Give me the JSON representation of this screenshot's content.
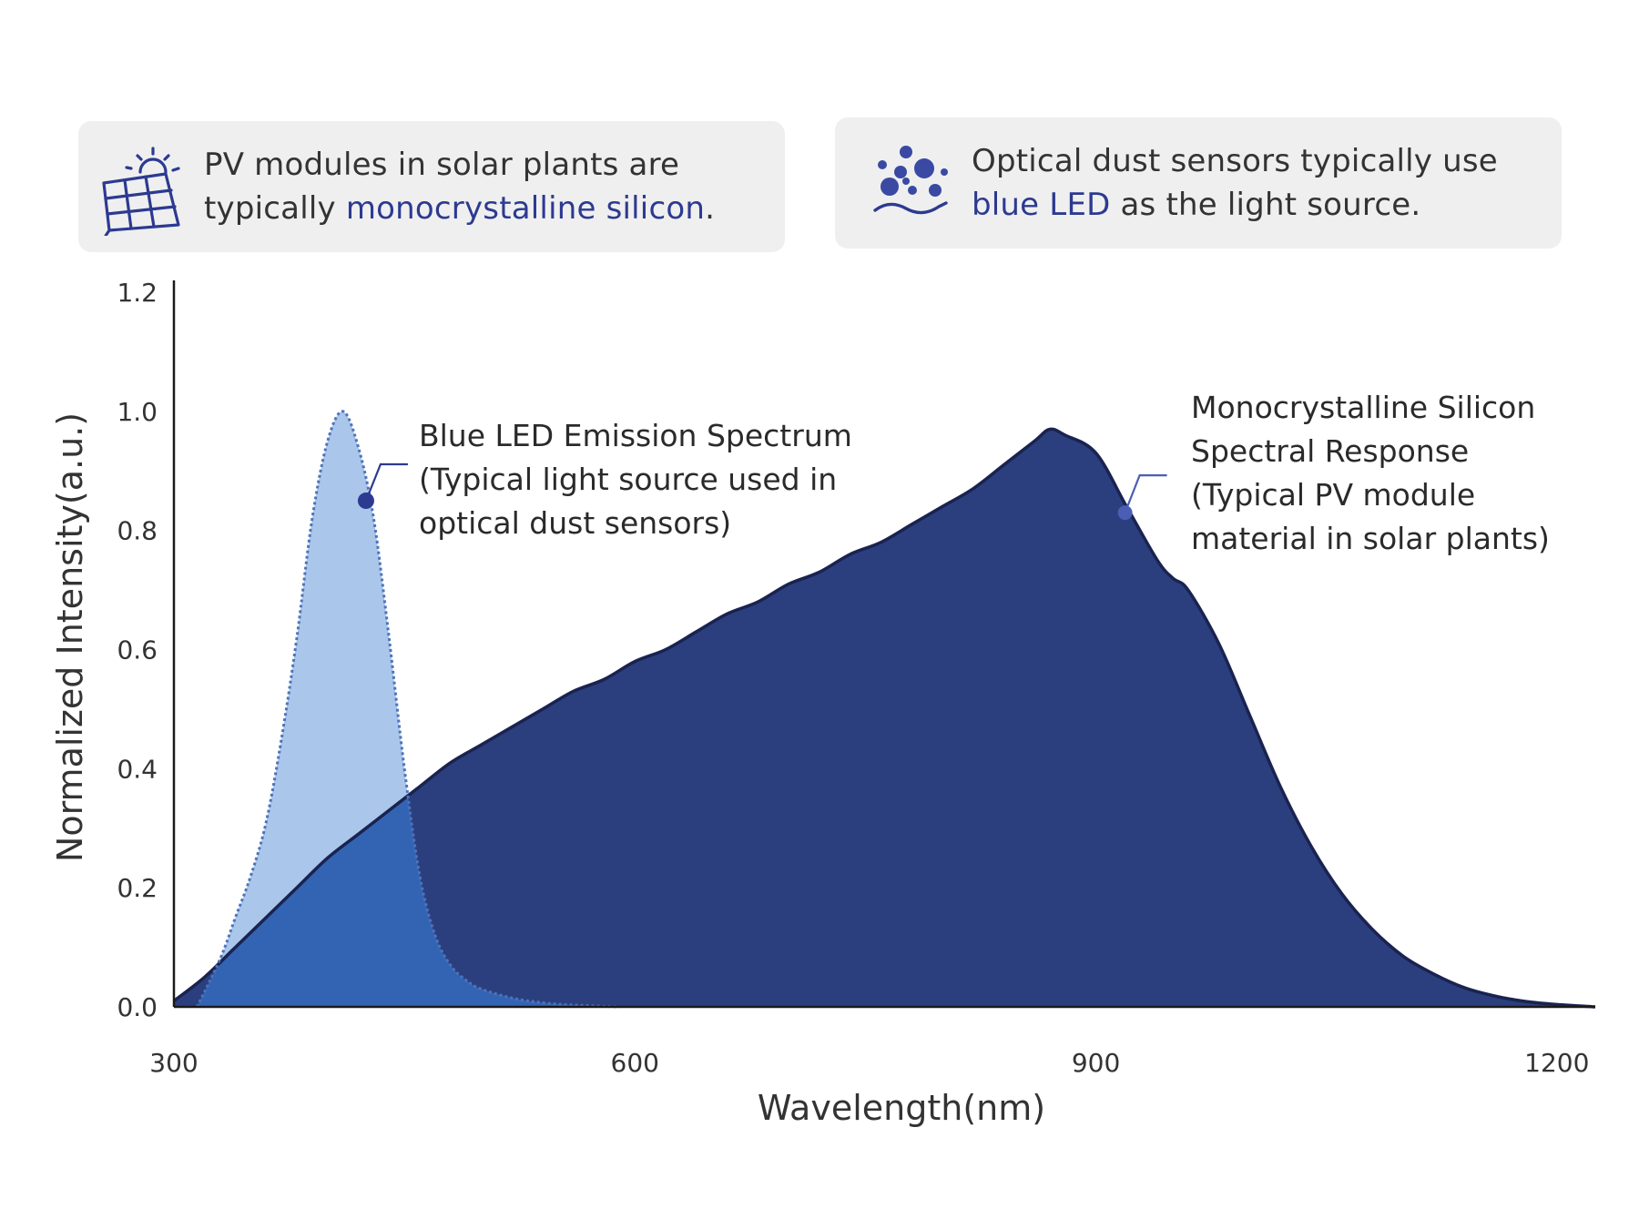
{
  "cards": {
    "pv": {
      "icon": "solar-panel-icon",
      "text_before": "PV modules in solar plants are typically ",
      "highlight": "monocrystalline silicon",
      "text_after": "."
    },
    "dust": {
      "icon": "dust-particles-icon",
      "text_before": "Optical dust sensors typically use ",
      "highlight": "blue LED",
      "text_after": " as the light source."
    }
  },
  "colors": {
    "highlight": "#2c3a91",
    "silicon_fill": "#2b3f7e",
    "silicon_stroke": "#1a2350",
    "led_fill": "#aac6ea",
    "led_stroke": "#4d73b9",
    "overlap_fill": "#3364b4",
    "card_bg": "#efefef"
  },
  "chart_data": {
    "type": "area",
    "xlabel": "Wavelength(nm)",
    "ylabel": "Normalized Intensity(a.u.)",
    "xlim": [
      300,
      1225
    ],
    "ylim": [
      0.0,
      1.22
    ],
    "x_ticks": [
      300,
      600,
      900,
      1200
    ],
    "y_ticks": [
      0.0,
      0.2,
      0.4,
      0.6,
      0.8,
      1.0,
      1.2
    ],
    "y_tick_labels": [
      "0.0",
      "0.2",
      "0.4",
      "0.6",
      "0.8",
      "1.0",
      "1.2"
    ],
    "grid": false,
    "series": [
      {
        "key": "silicon",
        "x": [
          300,
          320,
          340,
          360,
          380,
          400,
          420,
          440,
          460,
          480,
          500,
          520,
          540,
          560,
          580,
          600,
          620,
          640,
          660,
          680,
          700,
          720,
          740,
          760,
          780,
          800,
          820,
          840,
          860,
          870,
          880,
          900,
          920,
          940,
          950,
          960,
          980,
          1000,
          1020,
          1040,
          1060,
          1080,
          1100,
          1120,
          1140,
          1160,
          1180,
          1200,
          1225
        ],
        "values": [
          0.01,
          0.05,
          0.1,
          0.15,
          0.2,
          0.25,
          0.29,
          0.33,
          0.37,
          0.41,
          0.44,
          0.47,
          0.5,
          0.53,
          0.55,
          0.58,
          0.6,
          0.63,
          0.66,
          0.68,
          0.71,
          0.73,
          0.76,
          0.78,
          0.81,
          0.84,
          0.87,
          0.91,
          0.95,
          0.97,
          0.96,
          0.93,
          0.84,
          0.75,
          0.72,
          0.7,
          0.61,
          0.49,
          0.37,
          0.27,
          0.19,
          0.13,
          0.085,
          0.055,
          0.032,
          0.018,
          0.009,
          0.004,
          0.0
        ]
      },
      {
        "key": "led",
        "x": [
          315,
          330,
          340,
          350,
          360,
          370,
          380,
          390,
          400,
          410,
          420,
          430,
          440,
          450,
          460,
          470,
          480,
          490,
          500,
          520,
          540,
          560,
          590
        ],
        "values": [
          0.0,
          0.08,
          0.15,
          0.22,
          0.31,
          0.45,
          0.62,
          0.82,
          0.95,
          1.0,
          0.94,
          0.82,
          0.62,
          0.4,
          0.22,
          0.12,
          0.07,
          0.045,
          0.03,
          0.015,
          0.007,
          0.003,
          0.0
        ]
      }
    ],
    "annotations": [
      {
        "series": "led",
        "lines": [
          "Blue LED Emission Spectrum",
          "(Typical light source used in",
          "optical dust sensors)"
        ],
        "point": [
          425,
          0.85
        ]
      },
      {
        "series": "silicon",
        "lines": [
          "Monocrystalline Silicon",
          "Spectral Response",
          "(Typical PV module",
          "material in solar plants)"
        ],
        "point": [
          919,
          0.83
        ]
      }
    ]
  }
}
